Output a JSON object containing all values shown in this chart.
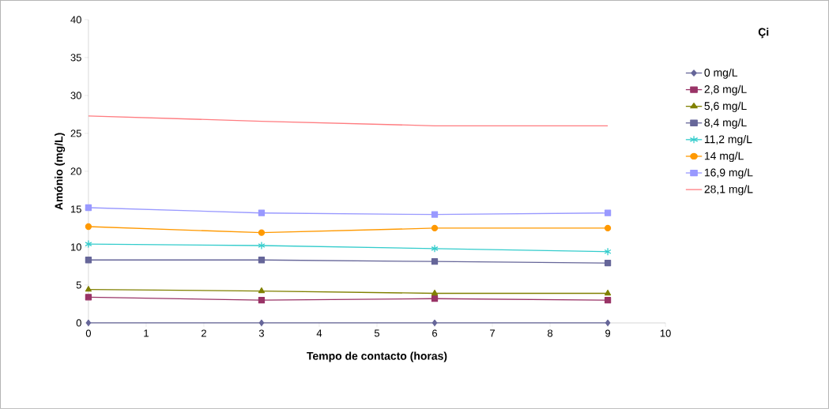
{
  "chart_data": {
    "type": "line",
    "xlabel": "Tempo de contacto (horas)",
    "ylabel": "Amónio (mg/L)",
    "legend_title": "Çi",
    "x": [
      0,
      3,
      6,
      9
    ],
    "xlim": [
      0,
      10
    ],
    "xticks": [
      0,
      1,
      2,
      3,
      4,
      5,
      6,
      7,
      8,
      9,
      10
    ],
    "ylim": [
      0,
      40
    ],
    "yticks": [
      0,
      5,
      10,
      15,
      20,
      25,
      30,
      35,
      40
    ],
    "grid": false,
    "legend": "right",
    "series": [
      {
        "name": "0 mg/L",
        "color": "#666699",
        "marker": "diamond",
        "values": [
          0,
          0,
          0,
          0
        ]
      },
      {
        "name": "2,8 mg/L",
        "color": "#993366",
        "marker": "square",
        "values": [
          3.4,
          3.0,
          3.2,
          3.0
        ]
      },
      {
        "name": "5,6 mg/L",
        "color": "#808000",
        "marker": "triangle",
        "values": [
          4.4,
          4.2,
          3.9,
          3.9
        ]
      },
      {
        "name": "8,4 mg/L",
        "color": "#666699",
        "marker": "square",
        "values": [
          8.3,
          8.3,
          8.1,
          7.9
        ]
      },
      {
        "name": "11,2 mg/L",
        "color": "#33cccc",
        "marker": "cross",
        "values": [
          10.4,
          10.2,
          9.8,
          9.4
        ]
      },
      {
        "name": "14 mg/L",
        "color": "#ff9900",
        "marker": "circle",
        "values": [
          12.7,
          11.9,
          12.5,
          12.5
        ]
      },
      {
        "name": "16,9 mg/L",
        "color": "#9999ff",
        "marker": "square",
        "values": [
          15.2,
          14.5,
          14.3,
          14.5
        ]
      },
      {
        "name": "28,1 mg/L",
        "color": "#ff7c80",
        "marker": "none",
        "values": [
          27.3,
          26.6,
          26.0,
          26.0
        ]
      }
    ]
  }
}
